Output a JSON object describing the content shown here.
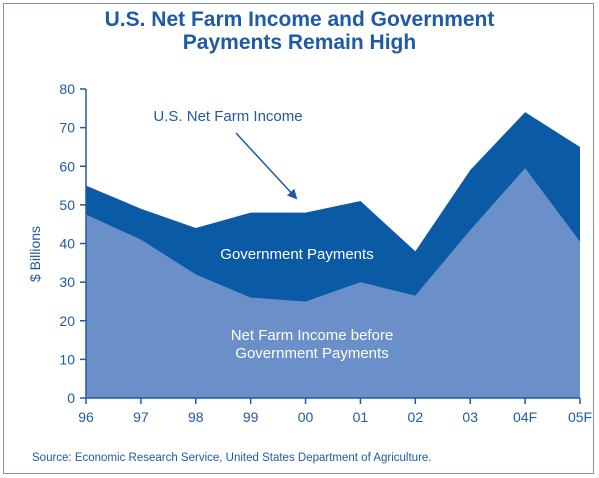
{
  "title": {
    "line1": "U.S. Net Farm Income and Government",
    "line2": "Payments Remain High"
  },
  "source": "Source:  Economic Research Service, United States Department of Agriculture.",
  "colors": {
    "accent": "#1f5aa6",
    "net_income_area": "#0a5aa6",
    "before_payments_area": "#6b8fc9"
  },
  "chart_data": {
    "type": "area",
    "x": [
      "96",
      "97",
      "98",
      "99",
      "00",
      "01",
      "02",
      "03",
      "04F",
      "05F"
    ],
    "ylabel": "$ Billions",
    "xlabel": "",
    "ylim": [
      0,
      80
    ],
    "yticks": [
      0,
      10,
      20,
      30,
      40,
      50,
      60,
      70,
      80
    ],
    "grid": false,
    "series": [
      {
        "name": "U.S. Net Farm Income",
        "values": [
          55,
          49,
          44,
          48,
          48,
          51,
          38,
          59,
          74,
          65
        ]
      },
      {
        "name": "Net Farm Income before Government Payments",
        "values": [
          47.5,
          41,
          32,
          26,
          25,
          30,
          26.5,
          43.5,
          59.5,
          40.5
        ]
      }
    ],
    "annotations": {
      "net_income": "U.S. Net Farm Income",
      "government_payments": "Government Payments",
      "before_line1": "Net Farm Income before",
      "before_line2": "Government Payments"
    }
  }
}
